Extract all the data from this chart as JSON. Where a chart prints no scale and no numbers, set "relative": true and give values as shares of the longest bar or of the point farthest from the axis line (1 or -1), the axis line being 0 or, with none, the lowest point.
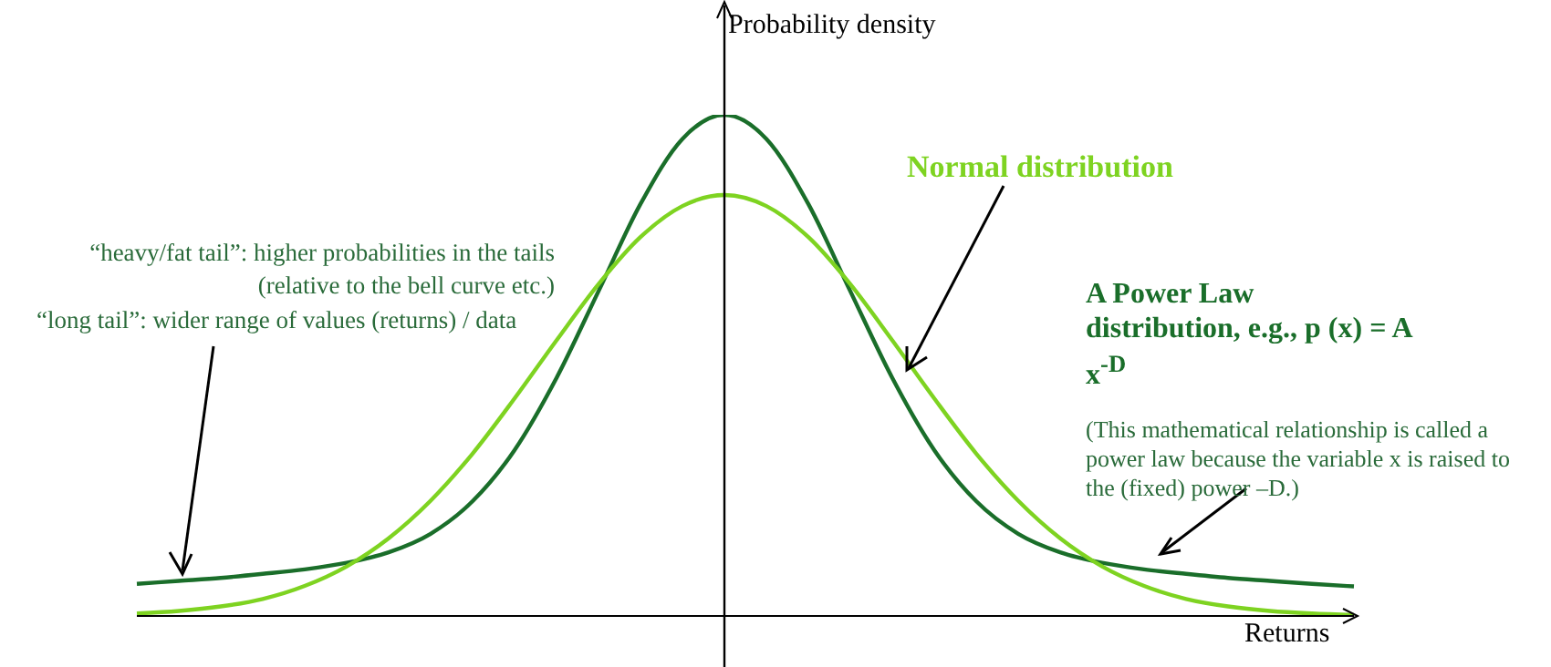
{
  "chart_data": {
    "type": "line",
    "relative": true,
    "xlabel": "Returns",
    "ylabel": "Probability density",
    "categories": [
      null,
      null,
      null,
      null,
      null,
      null,
      null,
      null,
      null,
      null,
      null,
      null,
      null,
      null,
      null,
      null,
      null,
      null,
      null,
      null,
      null,
      null,
      null,
      null,
      null,
      null,
      null,
      null,
      null,
      null
    ],
    "series": [
      {
        "name": "A Power Law distribution, e.g., p (x) = A x$^{-D}$",
        "color": "#1a6e2a",
        "values": [
          0.064,
          0.07,
          0.076,
          0.084,
          0.093,
          0.106,
          0.127,
          0.164,
          0.229,
          0.331,
          0.475,
          0.648,
          0.822,
          0.952,
          1,
          0.952,
          0.822,
          0.648,
          0.475,
          0.331,
          0.229,
          0.164,
          0.127,
          0.106,
          0.093,
          0.084,
          0.076,
          0.07,
          0.064,
          0.059
        ]
      },
      {
        "name": "Normal distribution",
        "color": "#7ed321",
        "values": [
          0.005,
          0.01,
          0.019,
          0.034,
          0.06,
          0.099,
          0.155,
          0.23,
          0.324,
          0.434,
          0.55,
          0.662,
          0.756,
          0.818,
          0.84,
          0.818,
          0.756,
          0.662,
          0.55,
          0.434,
          0.324,
          0.23,
          0.155,
          0.099,
          0.06,
          0.034,
          0.019,
          0.01,
          0.005,
          0.002
        ]
      }
    ],
    "annotations": [
      "“heavy/fat tail”: higher probabilities in the tails (relative to the bell curve etc.)",
      "“long tail”: wider range of values (returns) / data",
      "(This mathematical relationship is called a power law because the variable x is raised to the (fixed) power –D.)"
    ]
  }
}
